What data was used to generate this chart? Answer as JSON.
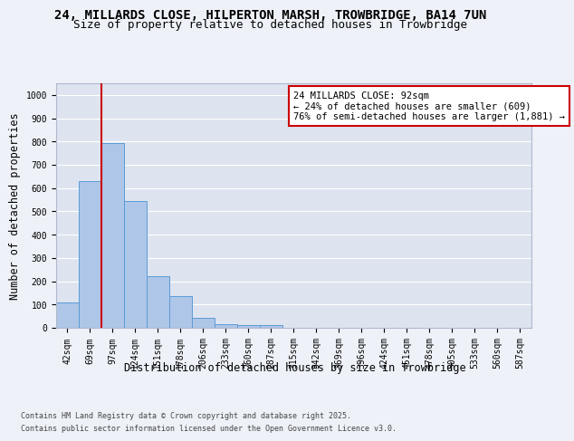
{
  "title_line1": "24, MILLARDS CLOSE, HILPERTON MARSH, TROWBRIDGE, BA14 7UN",
  "title_line2": "Size of property relative to detached houses in Trowbridge",
  "xlabel": "Distribution of detached houses by size in Trowbridge",
  "ylabel": "Number of detached properties",
  "footnote1": "Contains HM Land Registry data © Crown copyright and database right 2025.",
  "footnote2": "Contains public sector information licensed under the Open Government Licence v3.0.",
  "categories": [
    "42sqm",
    "69sqm",
    "97sqm",
    "124sqm",
    "151sqm",
    "178sqm",
    "206sqm",
    "233sqm",
    "260sqm",
    "287sqm",
    "315sqm",
    "342sqm",
    "369sqm",
    "396sqm",
    "424sqm",
    "451sqm",
    "478sqm",
    "505sqm",
    "533sqm",
    "560sqm",
    "587sqm"
  ],
  "values": [
    107,
    630,
    795,
    545,
    222,
    135,
    42,
    15,
    10,
    10,
    0,
    0,
    0,
    0,
    0,
    0,
    0,
    0,
    0,
    0,
    0
  ],
  "bar_color": "#aec6e8",
  "bar_edge_color": "#5b9bd5",
  "highlight_color": "#cc0000",
  "annotation_title": "24 MILLARDS CLOSE: 92sqm",
  "annotation_line2": "← 24% of detached houses are smaller (609)",
  "annotation_line3": "76% of semi-detached houses are larger (1,881) →",
  "ylim": [
    0,
    1050
  ],
  "yticks": [
    0,
    100,
    200,
    300,
    400,
    500,
    600,
    700,
    800,
    900,
    1000
  ],
  "background_color": "#eef2f8",
  "plot_bg_color": "#dde4f0",
  "grid_color": "#ffffff",
  "title_fontsize": 10,
  "subtitle_fontsize": 9,
  "axis_label_fontsize": 8.5,
  "tick_fontsize": 7,
  "annotation_fontsize": 7.5,
  "footnote_fontsize": 6
}
